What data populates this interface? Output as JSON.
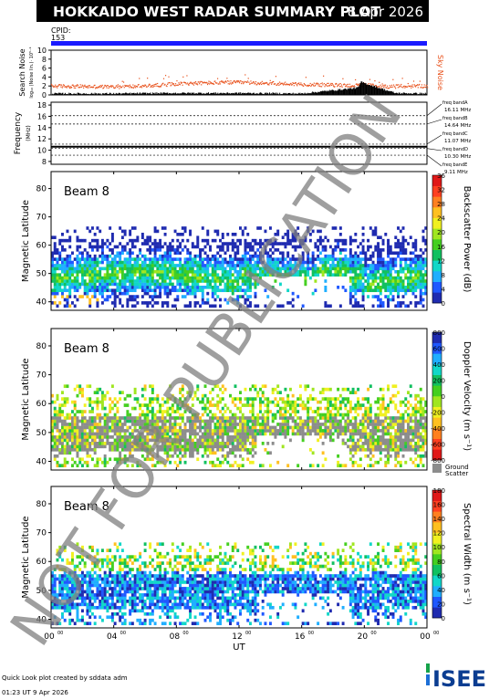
{
  "header": {
    "title": "HOKKAIDO WEST RADAR SUMMARY PLOT",
    "date": "8 Apr 2026",
    "cpid_label": "CPID:",
    "cpid_value": "153"
  },
  "footer": {
    "credit": "Quick Look plot created by sddata adm",
    "timestamp": "01:23 UT  9 Apr 2026",
    "logo_text": "ISEE"
  },
  "watermark": "NOT FOR PUBLICATION",
  "colors": {
    "cpid_bar": "#1a1aff",
    "sky_noise": "#e8501a",
    "search_noise": "#000000",
    "ground_scatter": "#8c8c8c",
    "watermark": "#7f7f7f"
  },
  "chart_data": [
    {
      "type": "scatter",
      "id": "noise",
      "ylabel": "Search Noise",
      "ylabel_sub": "log₁₀ (Noise lin.)· 10⁵⁻¹",
      "yticks": [
        "0",
        "2",
        "4",
        "6",
        "8",
        "10"
      ],
      "ylim": [
        0,
        10
      ],
      "xlim": [
        0,
        24
      ],
      "legend": "Sky Noise",
      "series": [
        {
          "name": "Sky Noise",
          "x": [
            0,
            2,
            4,
            6,
            8,
            10,
            12,
            14,
            16,
            18,
            19.5,
            20,
            21,
            22,
            24
          ],
          "values": [
            2.1,
            2.0,
            1.9,
            2.1,
            2.6,
            2.8,
            2.9,
            2.7,
            2.5,
            2.3,
            2.2,
            2.4,
            2.0,
            2.0,
            2.1
          ]
        },
        {
          "x": [
            0,
            4,
            8,
            12,
            16,
            19.6,
            19.8,
            20.2,
            22,
            24
          ],
          "values": [
            0.3,
            0.3,
            0.4,
            0.4,
            0.3,
            1.6,
            2.9,
            2.4,
            0.4,
            0.3
          ]
        }
      ]
    },
    {
      "type": "line",
      "id": "frequency",
      "ylabel": "Frequency",
      "ylabel_sub": "(MHz)",
      "yticks": [
        "8",
        "10",
        "12",
        "14",
        "16",
        "18"
      ],
      "ylim": [
        7.5,
        18.5
      ],
      "xlim": [
        0,
        24
      ],
      "bands": [
        {
          "name": "freq bandA",
          "value": "16.11 MHz",
          "mhz": 16.11
        },
        {
          "name": "freq bandB",
          "value": "14.64 MHz",
          "mhz": 14.64
        },
        {
          "name": "freq bandC",
          "value": "11.07 MHz",
          "mhz": 11.07
        },
        {
          "name": "freq bandD",
          "value": "10.30 MHz",
          "mhz": 10.3
        },
        {
          "name": "freq bandE",
          "value": "9.11 MHz",
          "mhz": 9.11
        }
      ],
      "series": [
        {
          "x": [
            0,
            24
          ],
          "values": [
            10.62,
            10.62
          ]
        }
      ]
    },
    {
      "type": "heatmap",
      "id": "power",
      "beam_label": "Beam  8",
      "ylabel": "Magnetic Latitude",
      "yticks": [
        "40",
        "50",
        "60",
        "70",
        "80"
      ],
      "ylim": [
        37,
        86
      ],
      "xlim": [
        0,
        24
      ],
      "colorbar_label": "Backscatter Power (dB)",
      "colorbar_ticks": [
        "0",
        "4",
        "8",
        "12",
        "16",
        "20",
        "24",
        "28",
        "32",
        "36"
      ],
      "colorbar_colors": [
        "#1f2bb0",
        "#1f58ff",
        "#1faeff",
        "#11d7c8",
        "#11c060",
        "#44cf20",
        "#a0e620",
        "#f0f020",
        "#ffc020",
        "#ff8020",
        "#ff4020",
        "#e01818"
      ],
      "ground_scatter": false
    },
    {
      "type": "heatmap",
      "id": "velocity",
      "beam_label": "Beam  8",
      "ylabel": "Magnetic Latitude",
      "yticks": [
        "40",
        "50",
        "60",
        "70",
        "80"
      ],
      "ylim": [
        37,
        86
      ],
      "xlim": [
        0,
        24
      ],
      "colorbar_label": "Doppler Velocity (m s⁻¹)",
      "colorbar_ticks": [
        "-800",
        "-600",
        "-400",
        "-200",
        "0",
        "200",
        "400",
        "600",
        "800"
      ],
      "colorbar_colors": [
        "#e01818",
        "#ff4020",
        "#ff8020",
        "#ffc020",
        "#f0f020",
        "#a0e620",
        "#44cf20",
        "#11c060",
        "#11d7c8",
        "#1faeff",
        "#1f58ff",
        "#1f2bb0"
      ],
      "ground_scatter": true,
      "ground_label_1": "Ground",
      "ground_label_2": "Scatter"
    },
    {
      "type": "heatmap",
      "id": "width",
      "beam_label": "Beam  8",
      "ylabel": "Magnetic Latitude",
      "yticks": [
        "40",
        "50",
        "60",
        "70",
        "80"
      ],
      "ylim": [
        37,
        86
      ],
      "xlim": [
        0,
        24
      ],
      "xlabel": "UT",
      "xticks": [
        "00",
        "04",
        "08",
        "12",
        "16",
        "20",
        "00"
      ],
      "xtick_sup": "00",
      "colorbar_label": "Spectral Width (m s⁻¹)",
      "colorbar_ticks": [
        "0",
        "20",
        "40",
        "60",
        "80",
        "100",
        "120",
        "140",
        "160",
        "180"
      ],
      "colorbar_colors": [
        "#1f2bb0",
        "#1f58ff",
        "#1faeff",
        "#11d7c8",
        "#11c060",
        "#44cf20",
        "#a0e620",
        "#f0f020",
        "#ffc020",
        "#ff8020",
        "#ff4020",
        "#e01818"
      ],
      "ground_scatter": false
    }
  ]
}
